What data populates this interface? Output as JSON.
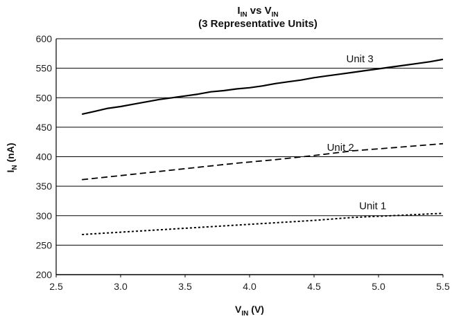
{
  "chart_data": {
    "type": "line",
    "title_line1_main": "I",
    "title_line1_sub1": "IN",
    "title_line1_mid": " vs V",
    "title_line1_sub2": "IN",
    "title_line2": "(3 Representative Units)",
    "xlabel_main": "V",
    "xlabel_sub": "IN",
    "xlabel_unit": " (V)",
    "ylabel_main": "I",
    "ylabel_sub": "N",
    "ylabel_unit": " (nA)",
    "xlim": [
      2.5,
      5.5
    ],
    "ylim": [
      200,
      600
    ],
    "x_ticks": [
      "2.5",
      "3.0",
      "3.5",
      "4.0",
      "4.5",
      "5.0",
      "5.5"
    ],
    "y_ticks": [
      "200",
      "250",
      "300",
      "350",
      "400",
      "450",
      "500",
      "550",
      "600"
    ],
    "grid": "horizontal",
    "legend": "inline labels",
    "series": [
      {
        "name": "Unit 3",
        "style": "solid",
        "x": [
          2.7,
          2.8,
          2.9,
          3.0,
          3.1,
          3.2,
          3.3,
          3.4,
          3.5,
          3.6,
          3.7,
          3.8,
          3.9,
          4.0,
          4.1,
          4.2,
          4.3,
          4.4,
          4.5,
          4.6,
          4.7,
          4.8,
          4.9,
          5.0,
          5.1,
          5.2,
          5.3,
          5.4,
          5.5
        ],
        "y": [
          472,
          477,
          482,
          485,
          489,
          493,
          497,
          500,
          503,
          506,
          510,
          512,
          515,
          517,
          520,
          524,
          527,
          530,
          534,
          537,
          540,
          543,
          546,
          549,
          552,
          555,
          558,
          561,
          565
        ]
      },
      {
        "name": "Unit 2",
        "style": "dashed",
        "x": [
          2.7,
          3.0,
          3.3,
          3.6,
          3.9,
          4.2,
          4.5,
          4.8,
          5.1,
          5.5
        ],
        "y": [
          361,
          368,
          375,
          382,
          389,
          395,
          402,
          410,
          415,
          422
        ]
      },
      {
        "name": "Unit 1",
        "style": "dotted",
        "x": [
          2.7,
          3.0,
          3.3,
          3.6,
          3.9,
          4.2,
          4.5,
          4.8,
          5.1,
          5.5
        ],
        "y": [
          268,
          272,
          276,
          280,
          284,
          288,
          292,
          297,
          300,
          304
        ]
      }
    ],
    "annotations": [
      {
        "text": "Unit 3",
        "x": 4.75,
        "y": 560
      },
      {
        "text": "Unit 2",
        "x": 4.6,
        "y": 410
      },
      {
        "text": "Unit 1",
        "x": 4.85,
        "y": 311
      }
    ]
  }
}
